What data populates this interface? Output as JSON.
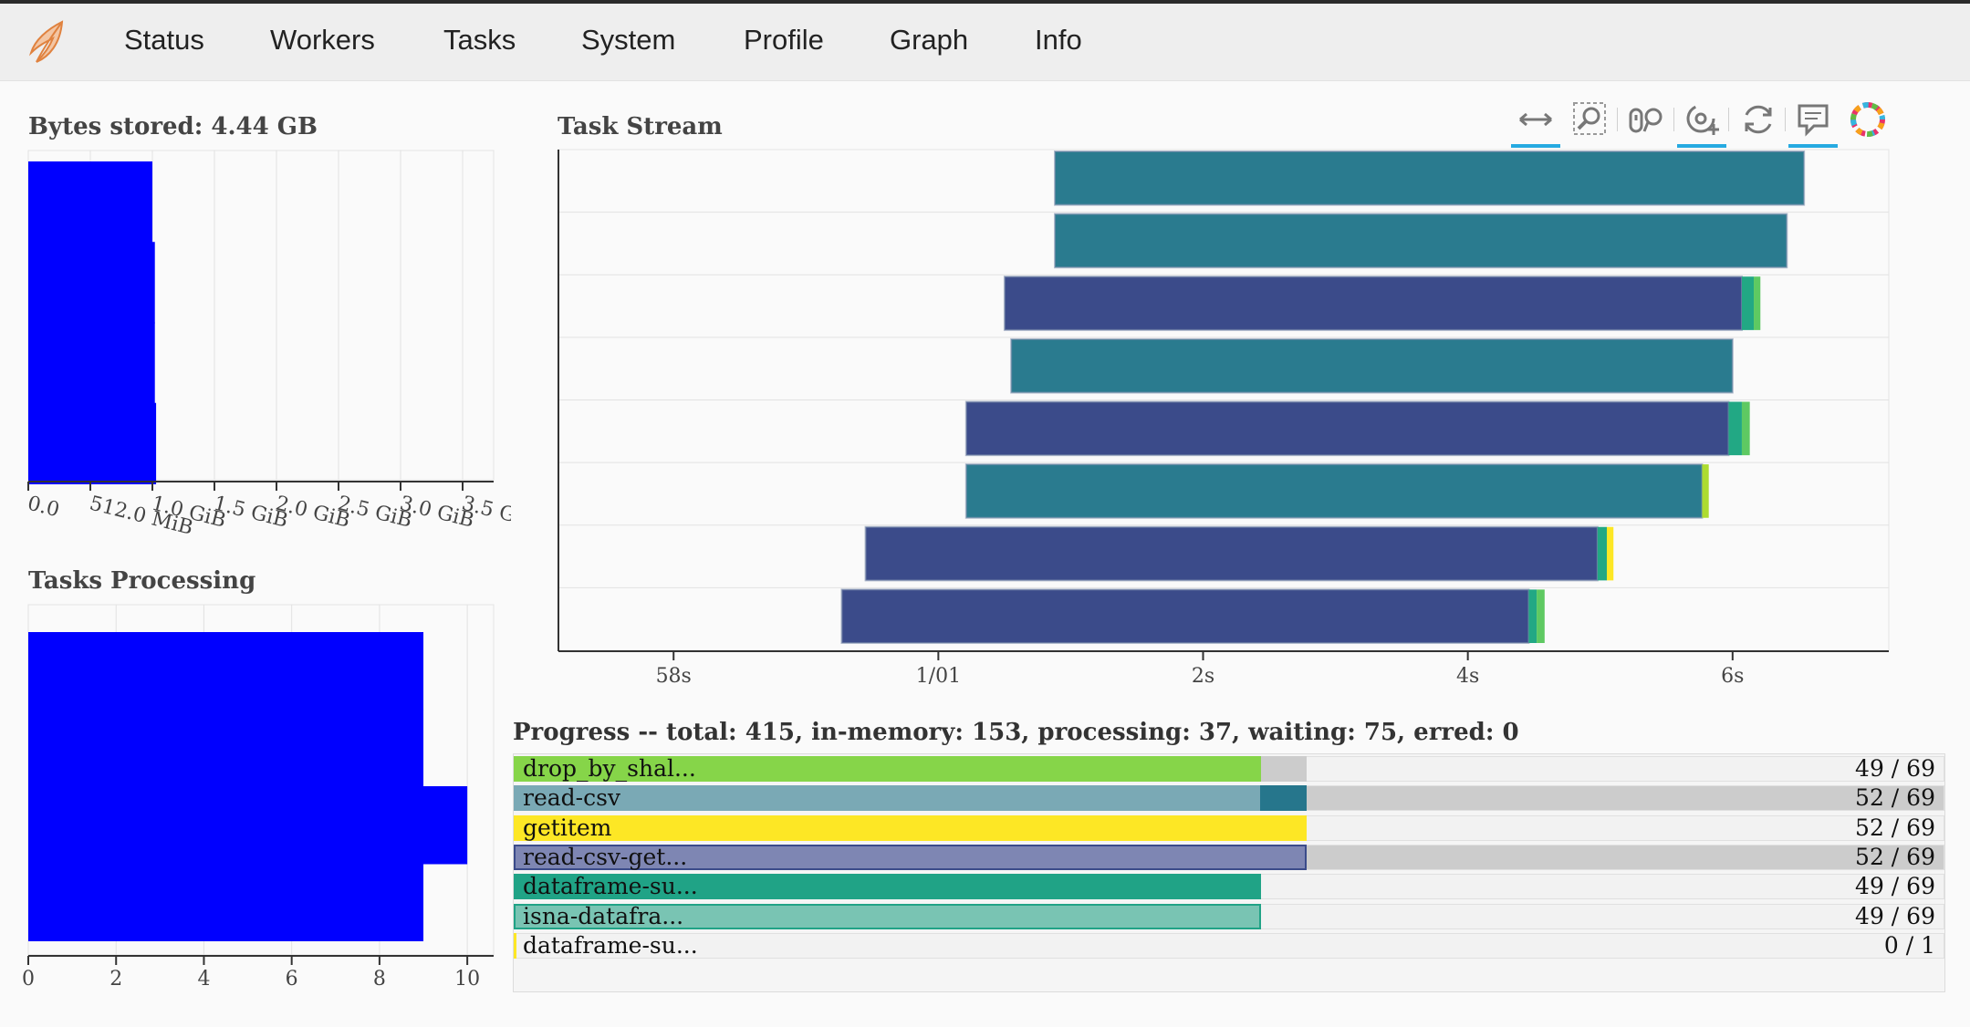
{
  "nav": {
    "items": [
      "Status",
      "Workers",
      "Tasks",
      "System",
      "Profile",
      "Graph",
      "Info"
    ]
  },
  "bytes_stored": {
    "title": "Bytes stored: 4.44 GB",
    "chart_data": {
      "type": "bar",
      "orientation": "horizontal",
      "title": "Bytes stored: 4.44 GB",
      "tick_labels": [
        "0.0",
        "512.0 MiB",
        "1.0 GiB",
        "1.5 GiB",
        "2.0 GiB",
        "2.5 GiB",
        "3.0 GiB",
        "3.5 G"
      ],
      "xlim_gib": [
        0,
        3.75
      ],
      "values_gib": [
        1.0,
        1.02,
        1.02,
        1.03
      ],
      "color": "#0000ff"
    }
  },
  "tasks_processing": {
    "title": "Tasks Processing",
    "chart_data": {
      "type": "bar",
      "orientation": "horizontal",
      "title": "Tasks Processing",
      "xticks": [
        "0",
        "2",
        "4",
        "6",
        "8",
        "10"
      ],
      "xlim": [
        0,
        10.6
      ],
      "values": [
        9,
        9,
        10,
        9
      ],
      "color": "#0000ff"
    }
  },
  "task_stream": {
    "title": "Task Stream",
    "toolbar": [
      "pan-icon",
      "box-zoom-icon",
      "wheel-zoom-icon",
      "zoom-in-icon",
      "reset-icon",
      "hover-icon",
      "bokeh-logo-icon"
    ],
    "chart_data": {
      "type": "bar",
      "orientation": "horizontal",
      "title": "Task Stream",
      "xticks": [
        "58s",
        "1/01",
        "2s",
        "4s",
        "6s"
      ],
      "tick_seconds": [
        -2,
        0,
        2,
        4,
        6
      ],
      "xlim": [
        -2.87,
        7.18
      ],
      "lanes": [
        {
          "segments": [
            {
              "start": 0.88,
              "end": 6.54,
              "color": "#2a7b8f"
            }
          ]
        },
        {
          "segments": [
            {
              "start": 0.88,
              "end": 6.41,
              "color": "#2a7b8f"
            }
          ]
        },
        {
          "segments": [
            {
              "start": 0.5,
              "end": 6.07,
              "color": "#3b4b8a"
            },
            {
              "start": 6.07,
              "end": 6.16,
              "color": "#22a884"
            },
            {
              "start": 6.16,
              "end": 6.21,
              "color": "#5ec962"
            }
          ]
        },
        {
          "segments": [
            {
              "start": 0.55,
              "end": 6.0,
              "color": "#2a7b8f"
            }
          ]
        },
        {
          "segments": [
            {
              "start": 0.21,
              "end": 5.97,
              "color": "#3b4b8a"
            },
            {
              "start": 5.97,
              "end": 6.07,
              "color": "#22a884"
            },
            {
              "start": 6.07,
              "end": 6.13,
              "color": "#5ec962"
            }
          ]
        },
        {
          "segments": [
            {
              "start": 0.21,
              "end": 5.77,
              "color": "#2a7b8f"
            },
            {
              "start": 5.77,
              "end": 5.82,
              "color": "#addc30"
            }
          ]
        },
        {
          "segments": [
            {
              "start": -0.55,
              "end": 4.98,
              "color": "#3b4b8a"
            },
            {
              "start": 4.98,
              "end": 5.05,
              "color": "#22a884"
            },
            {
              "start": 5.05,
              "end": 5.1,
              "color": "#fde725"
            }
          ]
        },
        {
          "segments": [
            {
              "start": -0.73,
              "end": 4.46,
              "color": "#3b4b8a"
            },
            {
              "start": 4.46,
              "end": 4.52,
              "color": "#22a884"
            },
            {
              "start": 4.52,
              "end": 4.58,
              "color": "#5ec962"
            }
          ]
        }
      ]
    }
  },
  "progress": {
    "title": "Progress -- total: 415, in-memory: 153, processing: 37, waiting: 75, erred: 0",
    "rows": [
      {
        "label": "drop_by_shal...",
        "count": "49 / 69",
        "memory_frac": 0.5226,
        "processing_frac": 0.0316,
        "waiting_frac": true,
        "color": "#86d549",
        "border": "none",
        "track": "#f2f2f2",
        "proc_color": "#cccccc"
      },
      {
        "label": "read-csv",
        "count": "52 / 69",
        "memory_frac": 0.5216,
        "processing_frac": 0.0323,
        "color": "#7aa9b5",
        "border": "none",
        "track": "#cccccc",
        "proc_color": "#26768c"
      },
      {
        "label": "getitem",
        "count": "52 / 69",
        "memory_frac": 0.5539,
        "processing_frac": 0.0,
        "color": "#fde725",
        "border": "none",
        "track": "#f2f2f2",
        "proc_color": "#cccccc"
      },
      {
        "label": "read-csv-get...",
        "count": "52 / 69",
        "memory_frac": 0.5539,
        "processing_frac": 0.0,
        "color": "#7e86b3",
        "border": "#3b4b8a",
        "track": "#cccccc",
        "proc_color": "#cccccc"
      },
      {
        "label": "dataframe-su...",
        "count": "49 / 69",
        "memory_frac": 0.5226,
        "processing_frac": 0.0,
        "color": "#20a386",
        "border": "none",
        "track": "#f2f2f2",
        "proc_color": "#cccccc"
      },
      {
        "label": "isna-datafra...",
        "count": "49 / 69",
        "memory_frac": 0.5226,
        "processing_frac": 0.0,
        "color": "#79c4b3",
        "border": "#20a386",
        "track": "#f2f2f2",
        "proc_color": "#cccccc"
      },
      {
        "label": "dataframe-su...",
        "count": "0 / 1",
        "memory_frac": 0.0,
        "processing_frac": 0.0,
        "color": "#fde725",
        "border": "none",
        "track": "#f2f2f2",
        "proc_color": "#cccccc"
      }
    ]
  }
}
